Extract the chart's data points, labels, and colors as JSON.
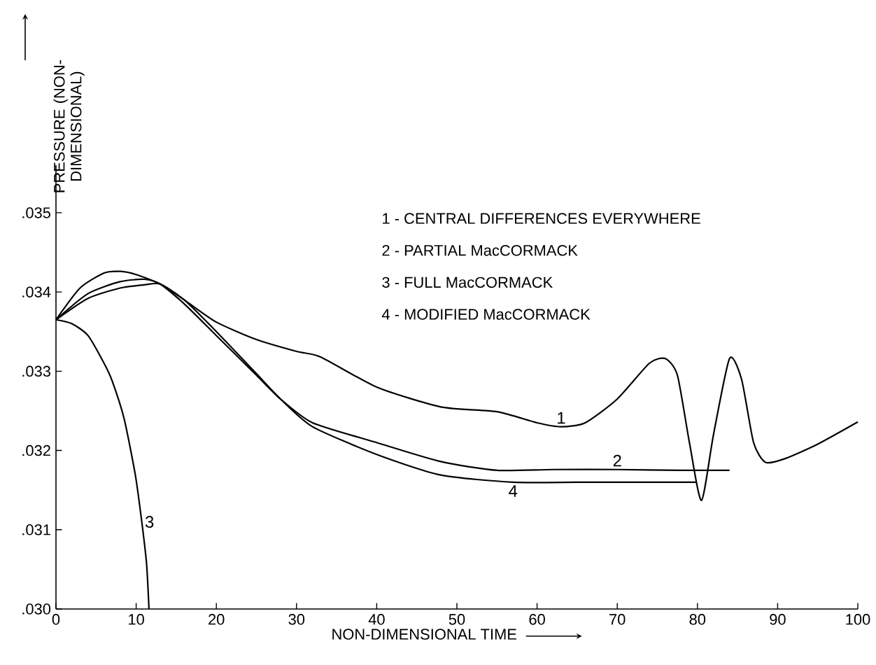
{
  "chart_data": {
    "type": "line",
    "xlabel": "NON-DIMENSIONAL TIME",
    "ylabel": "PRESSURE (NON-DIMENSIONAL)",
    "xlim": [
      0,
      100
    ],
    "ylim": [
      0.03,
      0.0356
    ],
    "xticks": [
      0,
      10,
      20,
      30,
      40,
      50,
      60,
      70,
      80,
      90,
      100
    ],
    "yticks": [
      {
        "value": 0.03,
        "label": ".030"
      },
      {
        "value": 0.031,
        "label": ".031"
      },
      {
        "value": 0.032,
        "label": ".032"
      },
      {
        "value": 0.033,
        "label": ".033"
      },
      {
        "value": 0.034,
        "label": ".034"
      },
      {
        "value": 0.035,
        "label": ".035"
      }
    ],
    "grid": false,
    "marker": "none",
    "line_style": "solid",
    "series": [
      {
        "name": "1",
        "color": "#000000",
        "x": [
          0,
          3,
          6,
          8,
          10,
          13,
          16,
          20,
          25,
          30,
          33,
          40,
          48,
          55,
          60,
          63,
          66,
          70,
          74,
          76,
          77.5,
          79,
          80.5,
          82,
          84,
          85.5,
          87,
          88.5,
          91,
          95,
          100
        ],
        "values": [
          0.03365,
          0.03405,
          0.03424,
          0.03426,
          0.03422,
          0.0341,
          0.0339,
          0.03362,
          0.0334,
          0.03325,
          0.03318,
          0.0328,
          0.03255,
          0.03249,
          0.03235,
          0.0323,
          0.03235,
          0.03265,
          0.0331,
          0.03316,
          0.03295,
          0.0321,
          0.03137,
          0.0322,
          0.03316,
          0.0329,
          0.0321,
          0.03185,
          0.0319,
          0.03208,
          0.03236
        ]
      },
      {
        "name": "2",
        "color": "#000000",
        "x": [
          0,
          4,
          8,
          11,
          13,
          16,
          20,
          25,
          28,
          32,
          40,
          48,
          55,
          62,
          70,
          78,
          84
        ],
        "values": [
          0.03365,
          0.03398,
          0.03413,
          0.03416,
          0.0341,
          0.03385,
          0.03345,
          0.03295,
          0.03265,
          0.03235,
          0.0321,
          0.03186,
          0.03175,
          0.03176,
          0.03176,
          0.03175,
          0.03175
        ]
      },
      {
        "name": "3",
        "color": "#000000",
        "x": [
          0,
          2,
          4,
          6,
          7,
          8.5,
          9.9,
          10.7,
          11.3,
          11.6
        ],
        "values": [
          0.03365,
          0.0336,
          0.03345,
          0.0331,
          0.03288,
          0.0324,
          0.03169,
          0.0311,
          0.03057,
          0.03
        ]
      },
      {
        "name": "4",
        "color": "#000000",
        "x": [
          0,
          4,
          8,
          11,
          13,
          16,
          20,
          25,
          28,
          32,
          40,
          48,
          57,
          65,
          72,
          79.8
        ],
        "values": [
          0.03365,
          0.03392,
          0.03405,
          0.03409,
          0.0341,
          0.0339,
          0.0335,
          0.03297,
          0.03265,
          0.0323,
          0.03195,
          0.03169,
          0.0316,
          0.0316,
          0.0316,
          0.0316
        ]
      }
    ],
    "annotations": [
      "1 - CENTRAL DIFFERENCES EVERYWHERE",
      "2 - PARTIAL MacCORMACK",
      "3 - FULL MacCORMACK",
      "4 - MODIFIED MacCORMACK"
    ]
  }
}
